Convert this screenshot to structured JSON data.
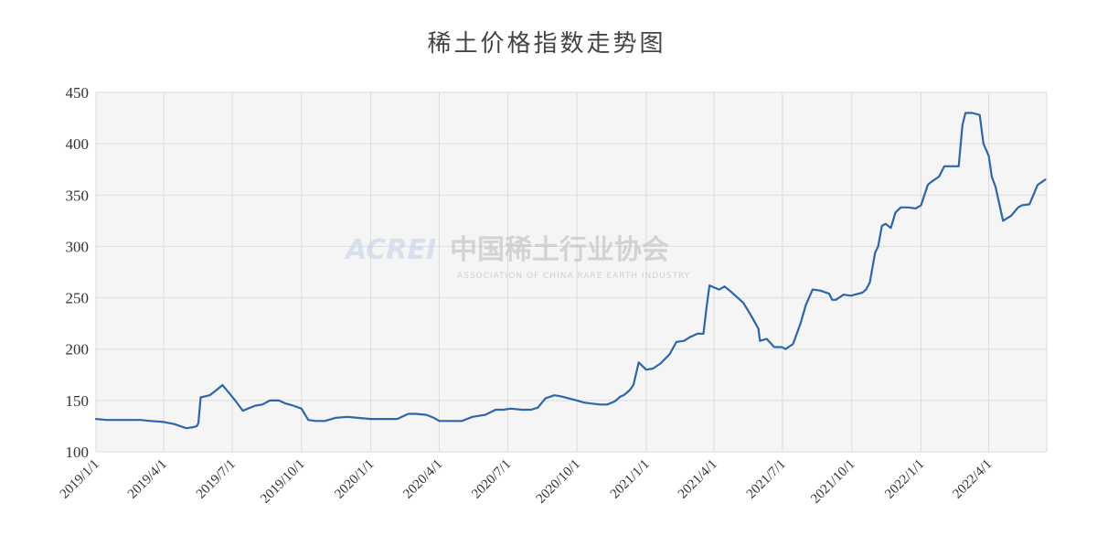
{
  "chart_data": {
    "type": "line",
    "title": "稀土价格指数走势图",
    "xlabel": "",
    "ylabel": "",
    "ylim": [
      100,
      450
    ],
    "yticks": [
      100,
      150,
      200,
      250,
      300,
      350,
      400,
      450
    ],
    "xlim": [
      "2019-01-01",
      "2022-06-17"
    ],
    "xticks": [
      "2019-01-01",
      "2019-04-01",
      "2019-07-01",
      "2019-10-01",
      "2020-01-01",
      "2020-04-01",
      "2020-07-01",
      "2020-10-01",
      "2021-01-01",
      "2021-04-01",
      "2021-07-01",
      "2021-10-01",
      "2022-01-01",
      "2022-04-01"
    ],
    "xtick_labels": [
      "2019/1/1",
      "2019/4/1",
      "2019/7/1",
      "2019/10/1",
      "2020/1/1",
      "2020/4/1",
      "2020/7/1",
      "2020/10/1",
      "2021/1/1",
      "2021/4/1",
      "2021/7/1",
      "2021/10/1",
      "2022/1/1",
      "2022/4/1"
    ],
    "grid": true,
    "legend": "none",
    "line_color": "#2f66a8",
    "series": [
      {
        "x": [
          "2019-01-01",
          "2019-01-15",
          "2019-02-01",
          "2019-02-15",
          "2019-03-01",
          "2019-03-15",
          "2019-04-01",
          "2019-04-15",
          "2019-05-01",
          "2019-05-10",
          "2019-05-15",
          "2019-05-17",
          "2019-05-20",
          "2019-06-01",
          "2019-06-10",
          "2019-06-18",
          "2019-06-25",
          "2019-07-05",
          "2019-07-15",
          "2019-07-25",
          "2019-08-01",
          "2019-08-10",
          "2019-08-20",
          "2019-09-01",
          "2019-09-10",
          "2019-09-20",
          "2019-10-01",
          "2019-10-10",
          "2019-10-20",
          "2019-11-01",
          "2019-11-15",
          "2019-12-01",
          "2019-12-15",
          "2020-01-01",
          "2020-01-20",
          "2020-02-05",
          "2020-02-20",
          "2020-03-01",
          "2020-03-15",
          "2020-03-25",
          "2020-04-01",
          "2020-04-15",
          "2020-05-01",
          "2020-05-15",
          "2020-06-01",
          "2020-06-15",
          "2020-06-25",
          "2020-07-05",
          "2020-07-20",
          "2020-08-01",
          "2020-08-10",
          "2020-08-20",
          "2020-09-01",
          "2020-09-10",
          "2020-09-20",
          "2020-10-01",
          "2020-10-10",
          "2020-10-20",
          "2020-11-01",
          "2020-11-10",
          "2020-11-20",
          "2020-11-28",
          "2020-12-02",
          "2020-12-10",
          "2020-12-15",
          "2020-12-22",
          "2021-01-01",
          "2021-01-10",
          "2021-01-20",
          "2021-02-01",
          "2021-02-10",
          "2021-02-20",
          "2021-03-01",
          "2021-03-10",
          "2021-03-18",
          "2021-03-22",
          "2021-03-26",
          "2021-04-01",
          "2021-04-08",
          "2021-04-15",
          "2021-04-25",
          "2021-05-01",
          "2021-05-10",
          "2021-05-20",
          "2021-05-30",
          "2021-06-01",
          "2021-06-10",
          "2021-06-20",
          "2021-06-30",
          "2021-07-05",
          "2021-07-15",
          "2021-07-25",
          "2021-08-01",
          "2021-08-10",
          "2021-08-20",
          "2021-09-01",
          "2021-09-05",
          "2021-09-10",
          "2021-09-20",
          "2021-09-30",
          "2021-10-05",
          "2021-10-15",
          "2021-10-20",
          "2021-10-25",
          "2021-11-01",
          "2021-11-05",
          "2021-11-10",
          "2021-11-15",
          "2021-11-22",
          "2021-11-28",
          "2021-12-05",
          "2021-12-15",
          "2021-12-25",
          "2022-01-01",
          "2022-01-10",
          "2022-01-15",
          "2022-01-25",
          "2022-02-01",
          "2022-02-10",
          "2022-02-20",
          "2022-02-25",
          "2022-03-01",
          "2022-03-10",
          "2022-03-20",
          "2022-03-25",
          "2022-04-01",
          "2022-04-05",
          "2022-04-10",
          "2022-04-20",
          "2022-05-01",
          "2022-05-10",
          "2022-05-15",
          "2022-05-25",
          "2022-06-05",
          "2022-06-15"
        ],
        "y": [
          132,
          131,
          131,
          131,
          131,
          130,
          129,
          127,
          123,
          124,
          125,
          128,
          153,
          155,
          160,
          165,
          159,
          150,
          140,
          143,
          145,
          146,
          150,
          150,
          147,
          145,
          142,
          131,
          130,
          130,
          133,
          134,
          133,
          132,
          132,
          132,
          137,
          137,
          136,
          133,
          130,
          130,
          130,
          134,
          136,
          141,
          141,
          142,
          141,
          141,
          143,
          152,
          155,
          154,
          152,
          150,
          148,
          147,
          146,
          146,
          149,
          154,
          155,
          160,
          165,
          187,
          180,
          181,
          186,
          195,
          207,
          208,
          212,
          215,
          215,
          240,
          262,
          260,
          258,
          261,
          255,
          251,
          245,
          233,
          220,
          208,
          210,
          202,
          202,
          200,
          205,
          225,
          243,
          258,
          257,
          254,
          248,
          248,
          253,
          252,
          253,
          255,
          258,
          265,
          294,
          300,
          320,
          322,
          318,
          333,
          338,
          338,
          337,
          340,
          360,
          363,
          368,
          378,
          378,
          378,
          418,
          430,
          430,
          428,
          400,
          388,
          368,
          358,
          325,
          330,
          338,
          340,
          341,
          360,
          365
        ]
      }
    ]
  },
  "watermark": {
    "logo": "ACREI",
    "text": "中国稀土行业协会",
    "subtext": "ASSOCIATION OF CHINA RARE EARTH INDUSTRY"
  }
}
